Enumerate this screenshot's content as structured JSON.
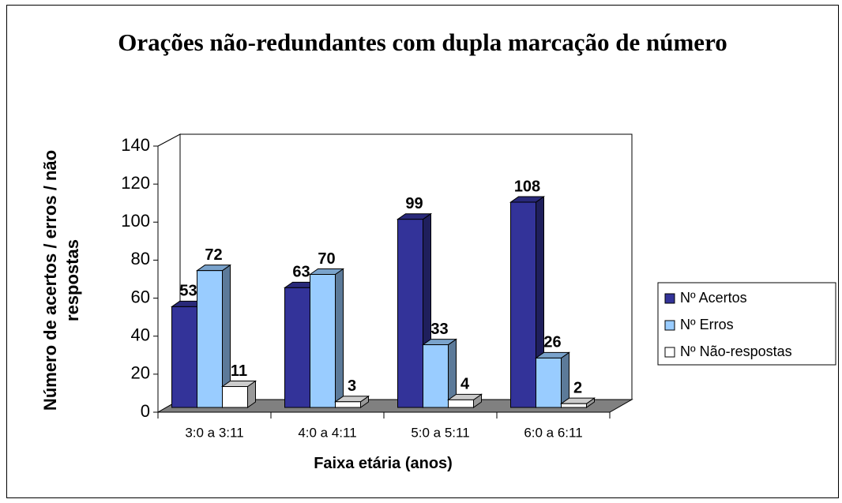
{
  "chart_data": {
    "type": "bar3d",
    "title": "Orações não-redundantes com dupla marcação de número",
    "x_label": "Faixa etária (anos)",
    "y_label": "Número de acertos / erros / não respostas",
    "categories": [
      "3:0 a 3:11",
      "4:0 a 4:11",
      "5:0 a 5:11",
      "6:0 a 6:11"
    ],
    "series": [
      {
        "name": "Nº Acertos",
        "color": "#333399",
        "values": [
          53,
          63,
          99,
          108
        ]
      },
      {
        "name": "Nº Erros",
        "color": "#99ccff",
        "values": [
          72,
          70,
          33,
          26
        ]
      },
      {
        "name": "Nº Não-respostas",
        "color": "#ffffff",
        "values": [
          11,
          3,
          4,
          2
        ]
      }
    ],
    "ylim": [
      0,
      140
    ],
    "yticks": [
      0,
      20,
      40,
      60,
      80,
      100,
      120,
      140
    ],
    "legend": "right"
  }
}
